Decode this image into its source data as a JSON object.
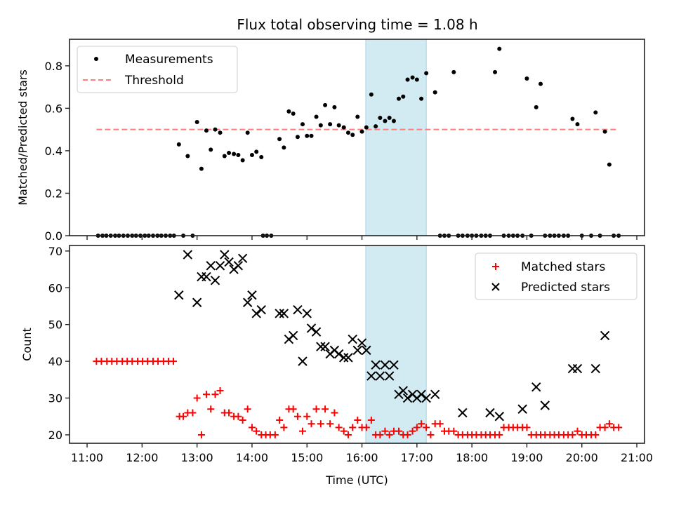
{
  "chart_data": [
    {
      "type": "scatter",
      "title": "Flux total observing time = 1.08 h",
      "xlabel": "",
      "ylabel": "Matched/Predicted stars",
      "ylim": [
        0.0,
        0.925
      ],
      "yticks": [
        0.0,
        0.2,
        0.4,
        0.6,
        0.8
      ],
      "ytick_labels": [
        "0.0",
        "0.2",
        "0.4",
        "0.6",
        "0.8"
      ],
      "xlim_hours": [
        10.68,
        21.14
      ],
      "xticks_hours": [
        11,
        12,
        13,
        14,
        15,
        16,
        17,
        18,
        19,
        20,
        21
      ],
      "legend": {
        "position": "upper left",
        "entries": [
          "Measurements",
          "Threshold"
        ]
      },
      "grid": false,
      "shaded_region_hours": [
        16.07,
        17.17
      ],
      "shaded_color": "#add8e6",
      "threshold": {
        "value": 0.5,
        "x_range_hours": [
          11.17,
          20.67
        ],
        "color": "#ff7f7f",
        "style": "dashed"
      },
      "series": [
        {
          "name": "Measurements",
          "color": "#000000",
          "marker": "dot",
          "x_hours": [
            11.2,
            11.28,
            11.35,
            11.43,
            11.51,
            11.58,
            11.66,
            11.74,
            11.82,
            11.89,
            11.97,
            12.05,
            12.12,
            12.2,
            12.28,
            12.35,
            12.43,
            12.51,
            12.58,
            12.67,
            12.75,
            12.83,
            12.92,
            13.0,
            13.08,
            13.17,
            13.25,
            13.33,
            13.42,
            13.5,
            13.58,
            13.67,
            13.75,
            13.83,
            13.92,
            14.0,
            14.08,
            14.17,
            14.2,
            14.27,
            14.35,
            14.5,
            14.58,
            14.67,
            14.75,
            14.83,
            14.92,
            15.0,
            15.08,
            15.17,
            15.25,
            15.33,
            15.42,
            15.5,
            15.58,
            15.67,
            15.75,
            15.83,
            15.92,
            16.0,
            16.08,
            16.17,
            16.25,
            16.33,
            16.42,
            16.5,
            16.58,
            16.67,
            16.75,
            16.83,
            16.92,
            17.0,
            17.08,
            17.17,
            17.33,
            17.42,
            17.5,
            17.58,
            17.67,
            17.75,
            17.83,
            17.92,
            18.0,
            18.08,
            18.17,
            18.25,
            18.33,
            18.42,
            18.5,
            18.58,
            18.67,
            18.75,
            18.83,
            18.92,
            19.0,
            19.08,
            19.17,
            19.25,
            19.33,
            19.42,
            19.5,
            19.58,
            19.67,
            19.75,
            19.83,
            19.92,
            20.0,
            20.17,
            20.25,
            20.33,
            20.42,
            20.5,
            20.58,
            20.67
          ],
          "y": [
            0,
            0,
            0,
            0,
            0,
            0,
            0,
            0,
            0,
            0,
            0,
            0,
            0,
            0,
            0,
            0,
            0,
            0,
            0,
            0.43,
            0,
            0.375,
            0,
            0.535,
            0.315,
            0.495,
            0.405,
            0.5,
            0.485,
            0.375,
            0.39,
            0.385,
            0.38,
            0.355,
            0.485,
            0.38,
            0.395,
            0.37,
            0,
            0,
            0,
            0.455,
            0.415,
            0.585,
            0.575,
            0.465,
            0.525,
            0.47,
            0.47,
            0.56,
            0.52,
            0.615,
            0.525,
            0.605,
            0.52,
            0.51,
            0.485,
            0.475,
            0.56,
            0.49,
            0.51,
            0.665,
            0.515,
            0.555,
            0.54,
            0.555,
            0.54,
            0.645,
            0.655,
            0.735,
            0.745,
            0.735,
            0.645,
            0.765,
            0.675,
            0,
            0,
            0,
            0.77,
            0,
            0,
            0,
            0,
            0,
            0,
            0,
            0,
            0.77,
            0.88,
            0,
            0,
            0,
            0,
            0,
            0.74,
            0,
            0.605,
            0.715,
            0,
            0,
            0,
            0,
            0,
            0,
            0.55,
            0.525,
            0,
            0,
            0.58,
            0,
            0.49,
            0.335,
            0,
            0
          ]
        }
      ]
    },
    {
      "type": "scatter",
      "title": "",
      "xlabel": "Time (UTC)",
      "ylabel": "Count",
      "ylim": [
        17.7,
        71.5
      ],
      "yticks": [
        20,
        30,
        40,
        50,
        60,
        70
      ],
      "ytick_labels": [
        "20",
        "30",
        "40",
        "50",
        "60",
        "70"
      ],
      "xlim_hours": [
        10.68,
        21.14
      ],
      "xticks_hours": [
        11,
        12,
        13,
        14,
        15,
        16,
        17,
        18,
        19,
        20,
        21
      ],
      "xtick_labels": [
        "11:00",
        "12:00",
        "13:00",
        "14:00",
        "15:00",
        "16:00",
        "17:00",
        "18:00",
        "19:00",
        "20:00",
        "21:00"
      ],
      "legend": {
        "position": "upper right",
        "entries": [
          "Matched stars",
          "Predicted stars"
        ]
      },
      "grid": false,
      "shaded_region_hours": [
        16.07,
        17.17
      ],
      "shaded_color": "#add8e6",
      "series": [
        {
          "name": "Matched stars",
          "color": "#ff0000",
          "marker": "plus",
          "x_hours": [
            11.17,
            11.26,
            11.36,
            11.45,
            11.54,
            11.64,
            11.73,
            11.82,
            11.92,
            12.01,
            12.1,
            12.2,
            12.29,
            12.39,
            12.48,
            12.57,
            12.68,
            12.75,
            12.83,
            12.92,
            13.0,
            13.08,
            13.17,
            13.25,
            13.33,
            13.42,
            13.5,
            13.58,
            13.67,
            13.75,
            13.83,
            13.92,
            14.0,
            14.08,
            14.17,
            14.25,
            14.33,
            14.42,
            14.5,
            14.58,
            14.67,
            14.75,
            14.83,
            14.92,
            15.0,
            15.08,
            15.17,
            15.25,
            15.33,
            15.42,
            15.5,
            15.58,
            15.67,
            15.75,
            15.83,
            15.92,
            16.0,
            16.08,
            16.17,
            16.25,
            16.33,
            16.42,
            16.5,
            16.58,
            16.67,
            16.75,
            16.83,
            16.92,
            17.0,
            17.08,
            17.17,
            17.25,
            17.33,
            17.42,
            17.5,
            17.58,
            17.67,
            17.75,
            17.83,
            17.92,
            18.0,
            18.08,
            18.17,
            18.25,
            18.33,
            18.42,
            18.5,
            18.58,
            18.67,
            18.75,
            18.83,
            18.92,
            19.0,
            19.08,
            19.17,
            19.25,
            19.33,
            19.42,
            19.5,
            19.58,
            19.67,
            19.75,
            19.83,
            19.92,
            20.0,
            20.08,
            20.17,
            20.25,
            20.33,
            20.42,
            20.5,
            20.58,
            20.67
          ],
          "y": [
            40,
            40,
            40,
            40,
            40,
            40,
            40,
            40,
            40,
            40,
            40,
            40,
            40,
            40,
            40,
            40,
            25,
            25,
            26,
            26,
            30,
            20,
            31,
            27,
            31,
            32,
            26,
            26,
            25,
            25,
            24,
            27,
            22,
            21,
            20,
            20,
            20,
            20,
            24,
            22,
            27,
            27,
            25,
            21,
            25,
            23,
            27,
            23,
            27,
            23,
            26,
            22,
            21,
            20,
            22,
            24,
            22,
            22,
            24,
            20,
            20,
            21,
            20,
            21,
            21,
            20,
            20,
            21,
            22,
            23,
            22,
            20,
            23,
            23,
            21,
            21,
            21,
            20,
            20,
            20,
            20,
            20,
            20,
            20,
            20,
            20,
            20,
            22,
            22,
            22,
            22,
            22,
            22,
            20,
            20,
            20,
            20,
            20,
            20,
            20,
            20,
            20,
            20,
            21,
            20,
            20,
            20,
            20,
            22,
            22,
            23,
            22,
            22
          ]
        },
        {
          "name": "Predicted stars",
          "color": "#000000",
          "marker": "x",
          "x_hours": [
            12.67,
            12.83,
            13.0,
            13.08,
            13.17,
            13.25,
            13.33,
            13.42,
            13.5,
            13.58,
            13.67,
            13.75,
            13.83,
            13.92,
            14.0,
            14.08,
            14.17,
            14.5,
            14.58,
            14.67,
            14.75,
            14.83,
            14.92,
            15.0,
            15.08,
            15.17,
            15.25,
            15.33,
            15.42,
            15.5,
            15.58,
            15.67,
            15.75,
            15.83,
            15.92,
            16.0,
            16.08,
            16.17,
            16.25,
            16.33,
            16.42,
            16.5,
            16.58,
            16.67,
            16.75,
            16.83,
            16.92,
            17.0,
            17.08,
            17.17,
            17.33,
            17.83,
            18.33,
            18.5,
            18.92,
            19.17,
            19.33,
            19.83,
            19.92,
            20.25,
            20.42
          ],
          "y": [
            58,
            69,
            56,
            63,
            63,
            66,
            62,
            66,
            69,
            67,
            65,
            66,
            68,
            56,
            58,
            53,
            54,
            53,
            53,
            46,
            47,
            54,
            40,
            53,
            49,
            48,
            44,
            44,
            42,
            43,
            42,
            41,
            41,
            46,
            43,
            45,
            43,
            36,
            39,
            36,
            39,
            36,
            39,
            31,
            32,
            30,
            31,
            30,
            31,
            30,
            31,
            26,
            26,
            25,
            27,
            33,
            28,
            38,
            38,
            38,
            47
          ]
        }
      ]
    }
  ],
  "figure": {
    "title": "Flux total observing time = 1.08 h"
  }
}
